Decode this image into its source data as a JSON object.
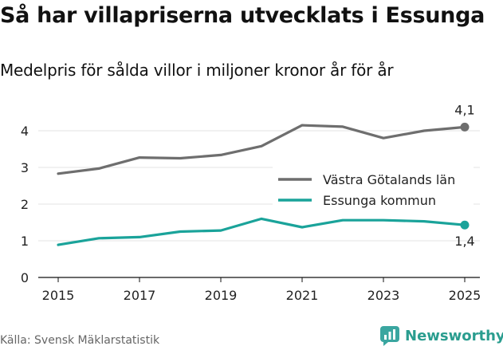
{
  "title": "Så har villapriserna utvecklats i Essunga",
  "subtitle": "Medelpris för sålda villor i miljoner kronor år för år",
  "source": "Källa: Svensk Mäklarstatistik",
  "brand": {
    "name": "Newsworthy",
    "icon": "newsworthy-logo-icon",
    "color": "#3aa6a0"
  },
  "chart_data": {
    "type": "line",
    "title": "Så har villapriserna utvecklats i Essunga",
    "subtitle": "Medelpris för sålda villor i miljoner kronor år för år",
    "xlabel": "",
    "ylabel": "",
    "x": [
      2015,
      2016,
      2017,
      2018,
      2019,
      2020,
      2021,
      2022,
      2023,
      2024,
      2025
    ],
    "xticks": [
      2015,
      2017,
      2019,
      2021,
      2023,
      2025
    ],
    "xtick_labels": [
      "2015",
      "2017",
      "2019",
      "2021",
      "2023",
      "2025"
    ],
    "yticks": [
      0,
      1,
      2,
      3,
      4
    ],
    "ytick_labels": [
      "0",
      "1",
      "2",
      "3",
      "4"
    ],
    "xlim": [
      2015,
      2025
    ],
    "ylim": [
      0,
      4.4
    ],
    "grid": true,
    "legend_position": "center-right",
    "series": [
      {
        "name": "Västra Götalands län",
        "color": "#6e6e6e",
        "values": [
          2.83,
          2.97,
          3.27,
          3.25,
          3.34,
          3.58,
          4.15,
          4.11,
          3.8,
          4.0,
          4.1
        ],
        "end_label": "4,1"
      },
      {
        "name": "Essunga kommun",
        "color": "#1aa39a",
        "values": [
          0.89,
          1.07,
          1.1,
          1.25,
          1.28,
          1.6,
          1.37,
          1.56,
          1.56,
          1.53,
          1.43
        ],
        "end_label": "1,4"
      }
    ]
  }
}
